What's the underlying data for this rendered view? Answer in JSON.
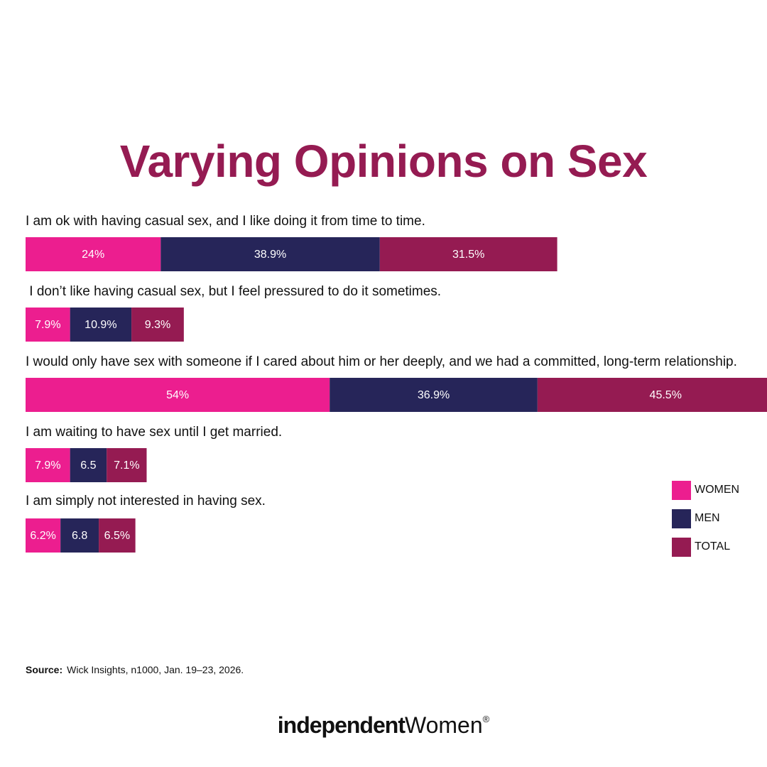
{
  "chart_data": {
    "type": "bar",
    "orientation": "horizontal-stacked",
    "title": "Varying Opinions on Sex",
    "categories": [
      "I am ok with having casual sex, and I like doing it from time to time.",
      " I don’t like having casual sex, but I feel pressured to do it sometimes.",
      "I would only have sex with someone if I cared about him or her deeply, and we had a committed, long-term relationship.",
      "I am waiting to have sex until I get married.",
      "I am simply not interested in having sex."
    ],
    "series": [
      {
        "name": "WOMEN",
        "color": "#ec1e8f",
        "values": [
          24,
          7.9,
          54,
          7.9,
          6.2
        ],
        "labels": [
          "24%",
          "7.9%",
          "54%",
          "7.9%",
          "6.2%"
        ]
      },
      {
        "name": "MEN",
        "color": "#262559",
        "values": [
          38.9,
          10.9,
          36.9,
          6.5,
          6.8
        ],
        "labels": [
          "38.9%",
          "10.9%",
          "36.9%",
          "6.5",
          "6.8"
        ]
      },
      {
        "name": "TOTAL",
        "color": "#951b52",
        "values": [
          31.5,
          9.3,
          45.5,
          7.1,
          6.5
        ],
        "labels": [
          "31.5%",
          "9.3%",
          "45.5%",
          "7.1%",
          "6.5%"
        ]
      }
    ],
    "xlabel": "",
    "ylabel": "",
    "grid": false,
    "legend_position": "right"
  },
  "source": {
    "label": "Source:",
    "text": "Wick Insights, n1000, Jan. 19–23, 2026."
  },
  "logo": {
    "bold_text": "independent",
    "regular_text": "Women",
    "mark": "®"
  },
  "colors": {
    "title": "#951b52",
    "women": "#ec1e8f",
    "men": "#262559",
    "total": "#951b52"
  }
}
